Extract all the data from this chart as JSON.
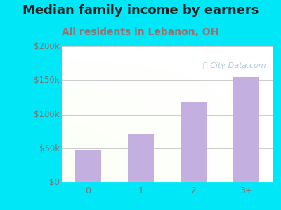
{
  "title": "Median family income by earners",
  "subtitle": "All residents in Lebanon, OH",
  "categories": [
    "0",
    "1",
    "2",
    "3+"
  ],
  "values": [
    48000,
    72000,
    118000,
    155000
  ],
  "bar_color": "#c4b0e0",
  "background_outer": "#00e8f8",
  "title_color": "#222222",
  "subtitle_color": "#9a7070",
  "tick_color": "#777777",
  "ylim": [
    0,
    200000
  ],
  "yticks": [
    0,
    50000,
    100000,
    150000,
    200000
  ],
  "ytick_labels": [
    "$0",
    "$50k",
    "$100k",
    "$150k",
    "$200k"
  ],
  "title_fontsize": 13,
  "subtitle_fontsize": 10,
  "watermark": "Ⓣ City-Data.com",
  "watermark_color": "#b0c8d8",
  "grid_color": "#cccccc",
  "bar_width": 0.5
}
